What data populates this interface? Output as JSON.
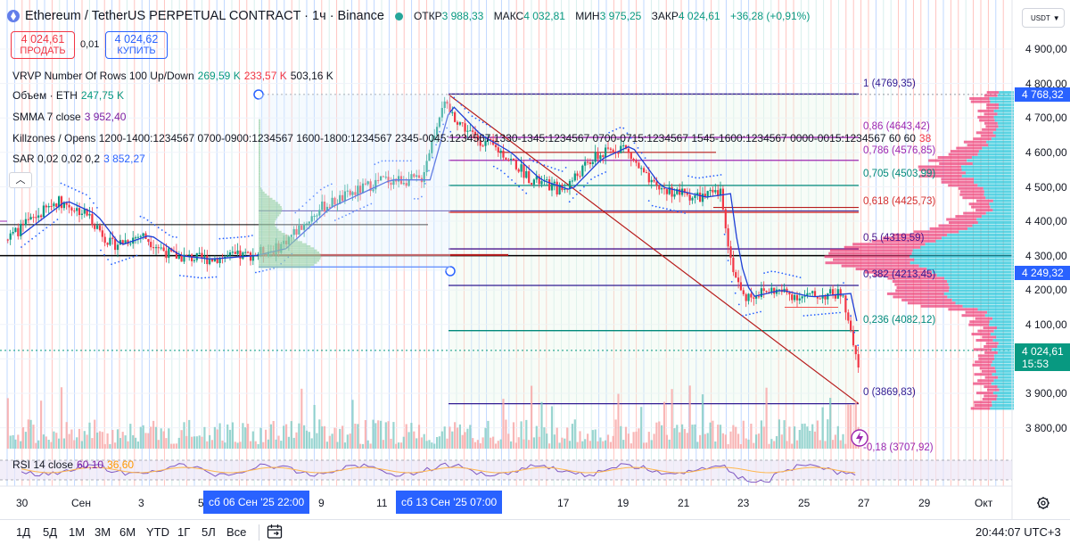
{
  "header": {
    "title": "Ethereum / TetherUS PERPETUAL CONTRACT · 1ч · Binance",
    "ohlc": {
      "open_label": "ОТКР",
      "open": "3 988,33",
      "high_label": "МАКС",
      "high": "4 032,81",
      "low_label": "МИН",
      "low": "3 975,25",
      "close_label": "ЗАКР",
      "close": "4 024,61",
      "change": "+36,28 (+0,91%)"
    },
    "currency": "USDT"
  },
  "trade": {
    "sell_price": "4 024,61",
    "sell_label": "ПРОДАТЬ",
    "spread": "0,01",
    "buy_price": "4 024,62",
    "buy_label": "КУПИТЬ"
  },
  "indicators": {
    "vrvp_name": "VRVP Number Of Rows 100 Up/Down",
    "vrvp_up": "269,59 K",
    "vrvp_down": "233,57 K",
    "vrvp_total": "503,16 K",
    "volume_name": "Объем · ETH",
    "volume_value": "247,75 K",
    "smma_name": "SMMA 7 close",
    "smma_value": "3 952,40",
    "killzones_name": "Killzones / Opens 1200-1400:1234567 0700-0900:1234567 1600-1800:1234567 2345-0045:1234567 1330-1345:1234567 0700-0715:1234567 1545-1600:1234567 0000-0015:1234567 60 60",
    "killzones_value": "38",
    "sar_name": "SAR 0,02 0,02 0,2",
    "sar_value": "3 852,27",
    "rsi_name": "RSI 14 close",
    "rsi_value": "60,10",
    "rsi_ma": "36,60"
  },
  "price_axis": {
    "ticks": [
      "4 900,00",
      "4 800,00",
      "4 700,00",
      "4 600,00",
      "4 500,00",
      "4 400,00",
      "4 300,00",
      "4 200,00",
      "4 100,00",
      "3 900,00",
      "3 800,00"
    ],
    "badge_high": "4 768,32",
    "badge_mid": "4 249,32",
    "current_price": "4 024,61",
    "countdown": "15:53",
    "colors": {
      "badge_high": "#2962ff",
      "badge_mid": "#2962ff",
      "current": "#089981"
    }
  },
  "fib_levels": [
    {
      "label": "1 (4769,35)",
      "color": "#311b92"
    },
    {
      "label": "0,786 (4576,85)",
      "color": "#9c27b0"
    },
    {
      "label": "0,705 (4503,99)",
      "color": "#00897b"
    },
    {
      "label": "0,618 (4425,73)",
      "color": "#d32f2f"
    },
    {
      "label": "0,5 (4319,59)",
      "color": "#4a148c"
    },
    {
      "label": "0,382 (4213,45)",
      "color": "#311b92"
    },
    {
      "label": "0,236 (4082,12)",
      "color": "#00897b"
    },
    {
      "label": "0 (3869,83)",
      "color": "#311b92"
    }
  ],
  "fib_extra": {
    "label": "0,86 (4643,42)",
    "color": "#9c27b0"
  },
  "fib_bottom": {
    "label": "-0,18 (3707,92)",
    "color": "#9c27b0"
  },
  "time_axis": {
    "labels": [
      "30",
      "Сен",
      "3",
      "5",
      "9",
      "11",
      "17",
      "19",
      "21",
      "23",
      "25",
      "27",
      "29",
      "Окт"
    ],
    "selected_start": "сб 06 Сен '25   22:00",
    "selected_end": "сб 13 Сен '25   07:00"
  },
  "bottom_bar": {
    "timeframes": [
      "1Д",
      "5Д",
      "1М",
      "3М",
      "6М",
      "YTD",
      "1Г",
      "5Л",
      "Все"
    ],
    "clock": "20:44:07 UTC+3"
  },
  "chart_data": {
    "type": "candlestick",
    "y_range": [
      3770,
      4960
    ],
    "approx_close_path": [
      [
        "Aug 29",
        4380
      ],
      [
        "Aug 31",
        4460
      ],
      [
        "Sep 2",
        4300
      ],
      [
        "Sep 4",
        4360
      ],
      [
        "Sep 5",
        4300
      ],
      [
        "Sep 6",
        4290
      ],
      [
        "Sep 8",
        4320
      ],
      [
        "Sep 10",
        4440
      ],
      [
        "Sep 12",
        4520
      ],
      [
        "Sep 13",
        4740
      ],
      [
        "Sep 14",
        4640
      ],
      [
        "Sep 15",
        4600
      ],
      [
        "Sep 16",
        4520
      ],
      [
        "Sep 17",
        4480
      ],
      [
        "Sep 18",
        4560
      ],
      [
        "Sep 19",
        4620
      ],
      [
        "Sep 20",
        4500
      ],
      [
        "Sep 21",
        4470
      ],
      [
        "Sep 22",
        4480
      ],
      [
        "Sep 22.5",
        4290
      ],
      [
        "Sep 23",
        4180
      ],
      [
        "Sep 24",
        4200
      ],
      [
        "Sep 25",
        4180
      ],
      [
        "Sep 25.5",
        3990
      ],
      [
        "Sep 26",
        3880
      ],
      [
        "Sep 26.5",
        3950
      ],
      [
        "Sep 27",
        4024.61
      ]
    ]
  }
}
